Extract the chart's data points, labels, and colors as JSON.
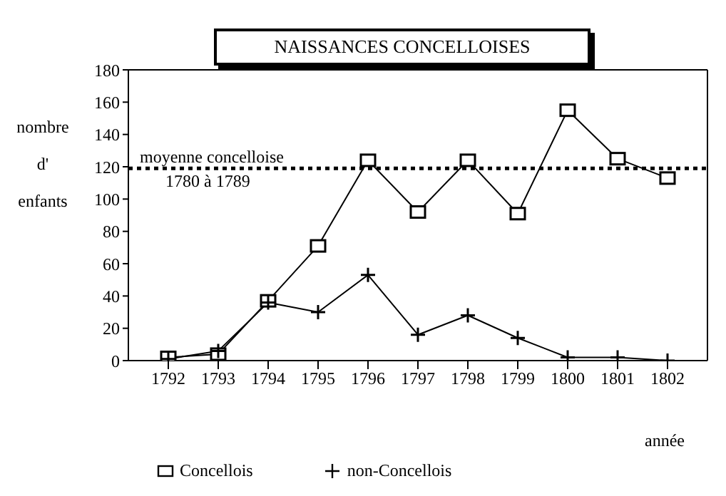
{
  "chart_data": {
    "type": "line",
    "title": "NAISSANCES CONCELLOISES",
    "ylabel": "nombre\nd'\nenfants",
    "xlabel": "année",
    "x": [
      1792,
      1793,
      1794,
      1795,
      1796,
      1797,
      1798,
      1799,
      1800,
      1801,
      1802
    ],
    "series": [
      {
        "name": "Concellois",
        "color": "#000000",
        "marker": "square",
        "values": [
          2,
          4,
          37,
          71,
          124,
          92,
          124,
          91,
          155,
          125,
          113
        ]
      },
      {
        "name": "non-Concellois",
        "color": "#000000",
        "marker": "cross",
        "values": [
          1,
          6,
          36,
          30,
          53,
          16,
          28,
          14,
          2,
          2,
          0
        ]
      }
    ],
    "xlim": [
      1791.2,
      1802.8
    ],
    "xticks": [
      1792,
      1793,
      1794,
      1795,
      1796,
      1797,
      1798,
      1799,
      1800,
      1801,
      1802
    ],
    "ylim": [
      0,
      180
    ],
    "yticks": [
      0,
      20,
      40,
      60,
      80,
      100,
      120,
      140,
      160,
      180
    ],
    "ref_lines": [
      {
        "axis": "y",
        "value": 119,
        "label": "moyenne concelloise\n1780 à 1789",
        "line_style": "dotted",
        "color": "#000000"
      }
    ],
    "legend": "bottom",
    "line_style": "solid"
  }
}
